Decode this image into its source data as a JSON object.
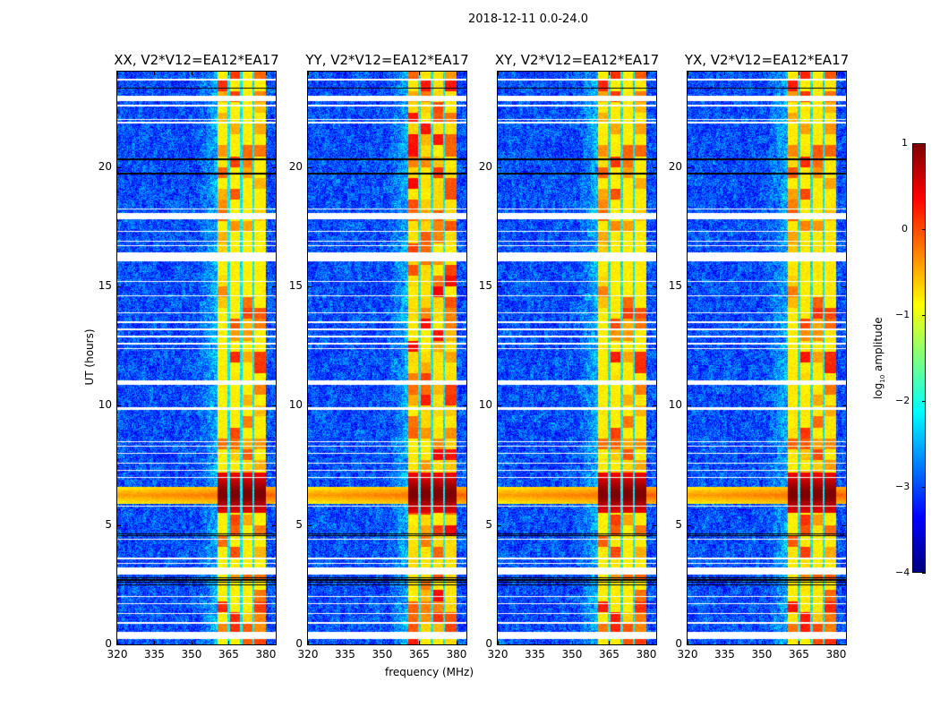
{
  "chart_data": {
    "type": "heatmap",
    "title": "2018-12-11 0.0-24.0",
    "xlabel": "frequency (MHz)",
    "ylabel": "UT (hours)",
    "xlim": [
      320,
      384
    ],
    "ylim": [
      0,
      24
    ],
    "xticks": [
      320,
      335,
      350,
      365,
      380
    ],
    "yticks": [
      0,
      5,
      10,
      15,
      20
    ],
    "panels": [
      {
        "title": "XX, V2*V12=EA12*EA17",
        "rfi_gain": 0.0
      },
      {
        "title": "YY, V2*V12=EA12*EA17",
        "rfi_gain": 0.25
      },
      {
        "title": "XY, V2*V12=EA12*EA17",
        "rfi_gain": 0.05
      },
      {
        "title": "YX, V2*V12=EA12*EA17",
        "rfi_gain": 0.1
      }
    ],
    "colorbar": {
      "label_prefix": "log",
      "label_sub": "10",
      "label_suffix": " amplitude",
      "range": [
        -4,
        1
      ],
      "ticks": [
        1,
        0,
        -1,
        -2,
        -3,
        -4
      ],
      "tick_labels": [
        "1",
        "0",
        "−1",
        "−2",
        "−3",
        "−4"
      ],
      "colormap": "jet"
    },
    "model": {
      "background_log_amp": -3.0,
      "rfi_band_mhz": [
        360.5,
        380
      ],
      "rfi_subband_edges_mhz": [
        365,
        370,
        375
      ],
      "rfi_log_amp": -0.8,
      "event_hours": [
        5.9,
        6.6
      ],
      "event_band_hours": [
        5.5,
        7.2
      ],
      "flagged_bands_hours": [
        [
          16.05,
          16.42
        ],
        [
          2.92,
          3.22
        ],
        [
          0.22,
          0.52
        ],
        [
          10.87,
          11.06
        ],
        [
          9.82,
          9.94
        ],
        [
          22.76,
          22.99
        ],
        [
          17.8,
          18.07
        ]
      ],
      "flagged_lines_hours": [
        23.66,
        22.57,
        22.0,
        21.86,
        18.25,
        17.3,
        16.9,
        16.7,
        15.2,
        14.6,
        13.9,
        13.5,
        13.2,
        12.9,
        12.6,
        12.4,
        8.5,
        8.3,
        8.0,
        7.6,
        7.3,
        7.0,
        5.8,
        4.4,
        3.6,
        3.4,
        2.0,
        1.7,
        1.3,
        0.9
      ],
      "black_lines_hours": [
        23.3,
        20.32,
        19.72,
        4.55,
        4.62,
        2.8,
        2.7,
        2.6,
        2.5
      ]
    }
  }
}
